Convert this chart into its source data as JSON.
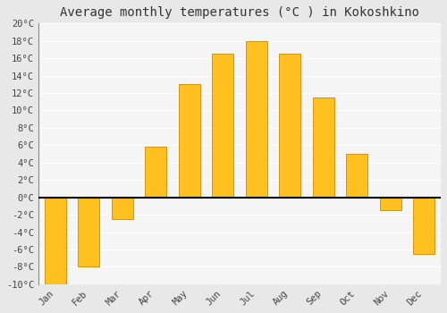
{
  "months": [
    "Jan",
    "Feb",
    "Mar",
    "Apr",
    "May",
    "Jun",
    "Jul",
    "Aug",
    "Sep",
    "Oct",
    "Nov",
    "Dec"
  ],
  "temperatures": [
    -10,
    -8,
    -2.5,
    5.8,
    13,
    16.5,
    18,
    16.5,
    11.5,
    5,
    -1.5,
    -6.5
  ],
  "bar_color": "#FFC020",
  "bar_edge_color": "#CC8800",
  "title": "Average monthly temperatures (°C ) in Kokoshkino",
  "ylim": [
    -10,
    20
  ],
  "yticks": [
    -10,
    -8,
    -6,
    -4,
    -2,
    0,
    2,
    4,
    6,
    8,
    10,
    12,
    14,
    16,
    18,
    20
  ],
  "ytick_labels": [
    "-10°C",
    "-8°C",
    "-6°C",
    "-4°C",
    "-2°C",
    "0°C",
    "2°C",
    "4°C",
    "6°C",
    "8°C",
    "10°C",
    "12°C",
    "14°C",
    "16°C",
    "18°C",
    "20°C"
  ],
  "figure_bg_color": "#e8e8e8",
  "plot_bg_color": "#f5f5f5",
  "grid_color": "#ffffff",
  "title_fontsize": 10,
  "tick_fontsize": 7.5,
  "bar_width": 0.65
}
